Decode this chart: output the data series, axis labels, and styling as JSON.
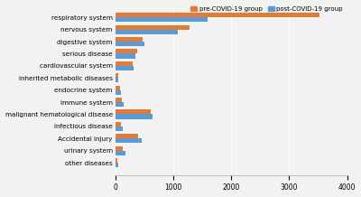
{
  "categories": [
    "respiratory system",
    "nervous system",
    "digestive system",
    "serious disease",
    "cardiovascular system",
    "inherited metabolic diseases",
    "endocrine system",
    "immune system",
    "malignant hematological disease",
    "infectious disease",
    "Accidental injury",
    "urinary system",
    "other diseases"
  ],
  "pre_covid": [
    3520,
    1280,
    480,
    380,
    300,
    50,
    80,
    120,
    620,
    100,
    400,
    130,
    30
  ],
  "post_covid": [
    1600,
    1080,
    500,
    350,
    320,
    60,
    100,
    150,
    650,
    130,
    460,
    170,
    55
  ],
  "pre_color": "#e07b39",
  "post_color": "#5b9bd5",
  "xlim": [
    0,
    4000
  ],
  "xticks": [
    0,
    1000,
    2000,
    3000,
    4000
  ],
  "legend_pre": "pre-COVID-19 group",
  "legend_post": "post-COVID-19 group",
  "background_color": "#f2f2f2",
  "bar_height": 0.38
}
